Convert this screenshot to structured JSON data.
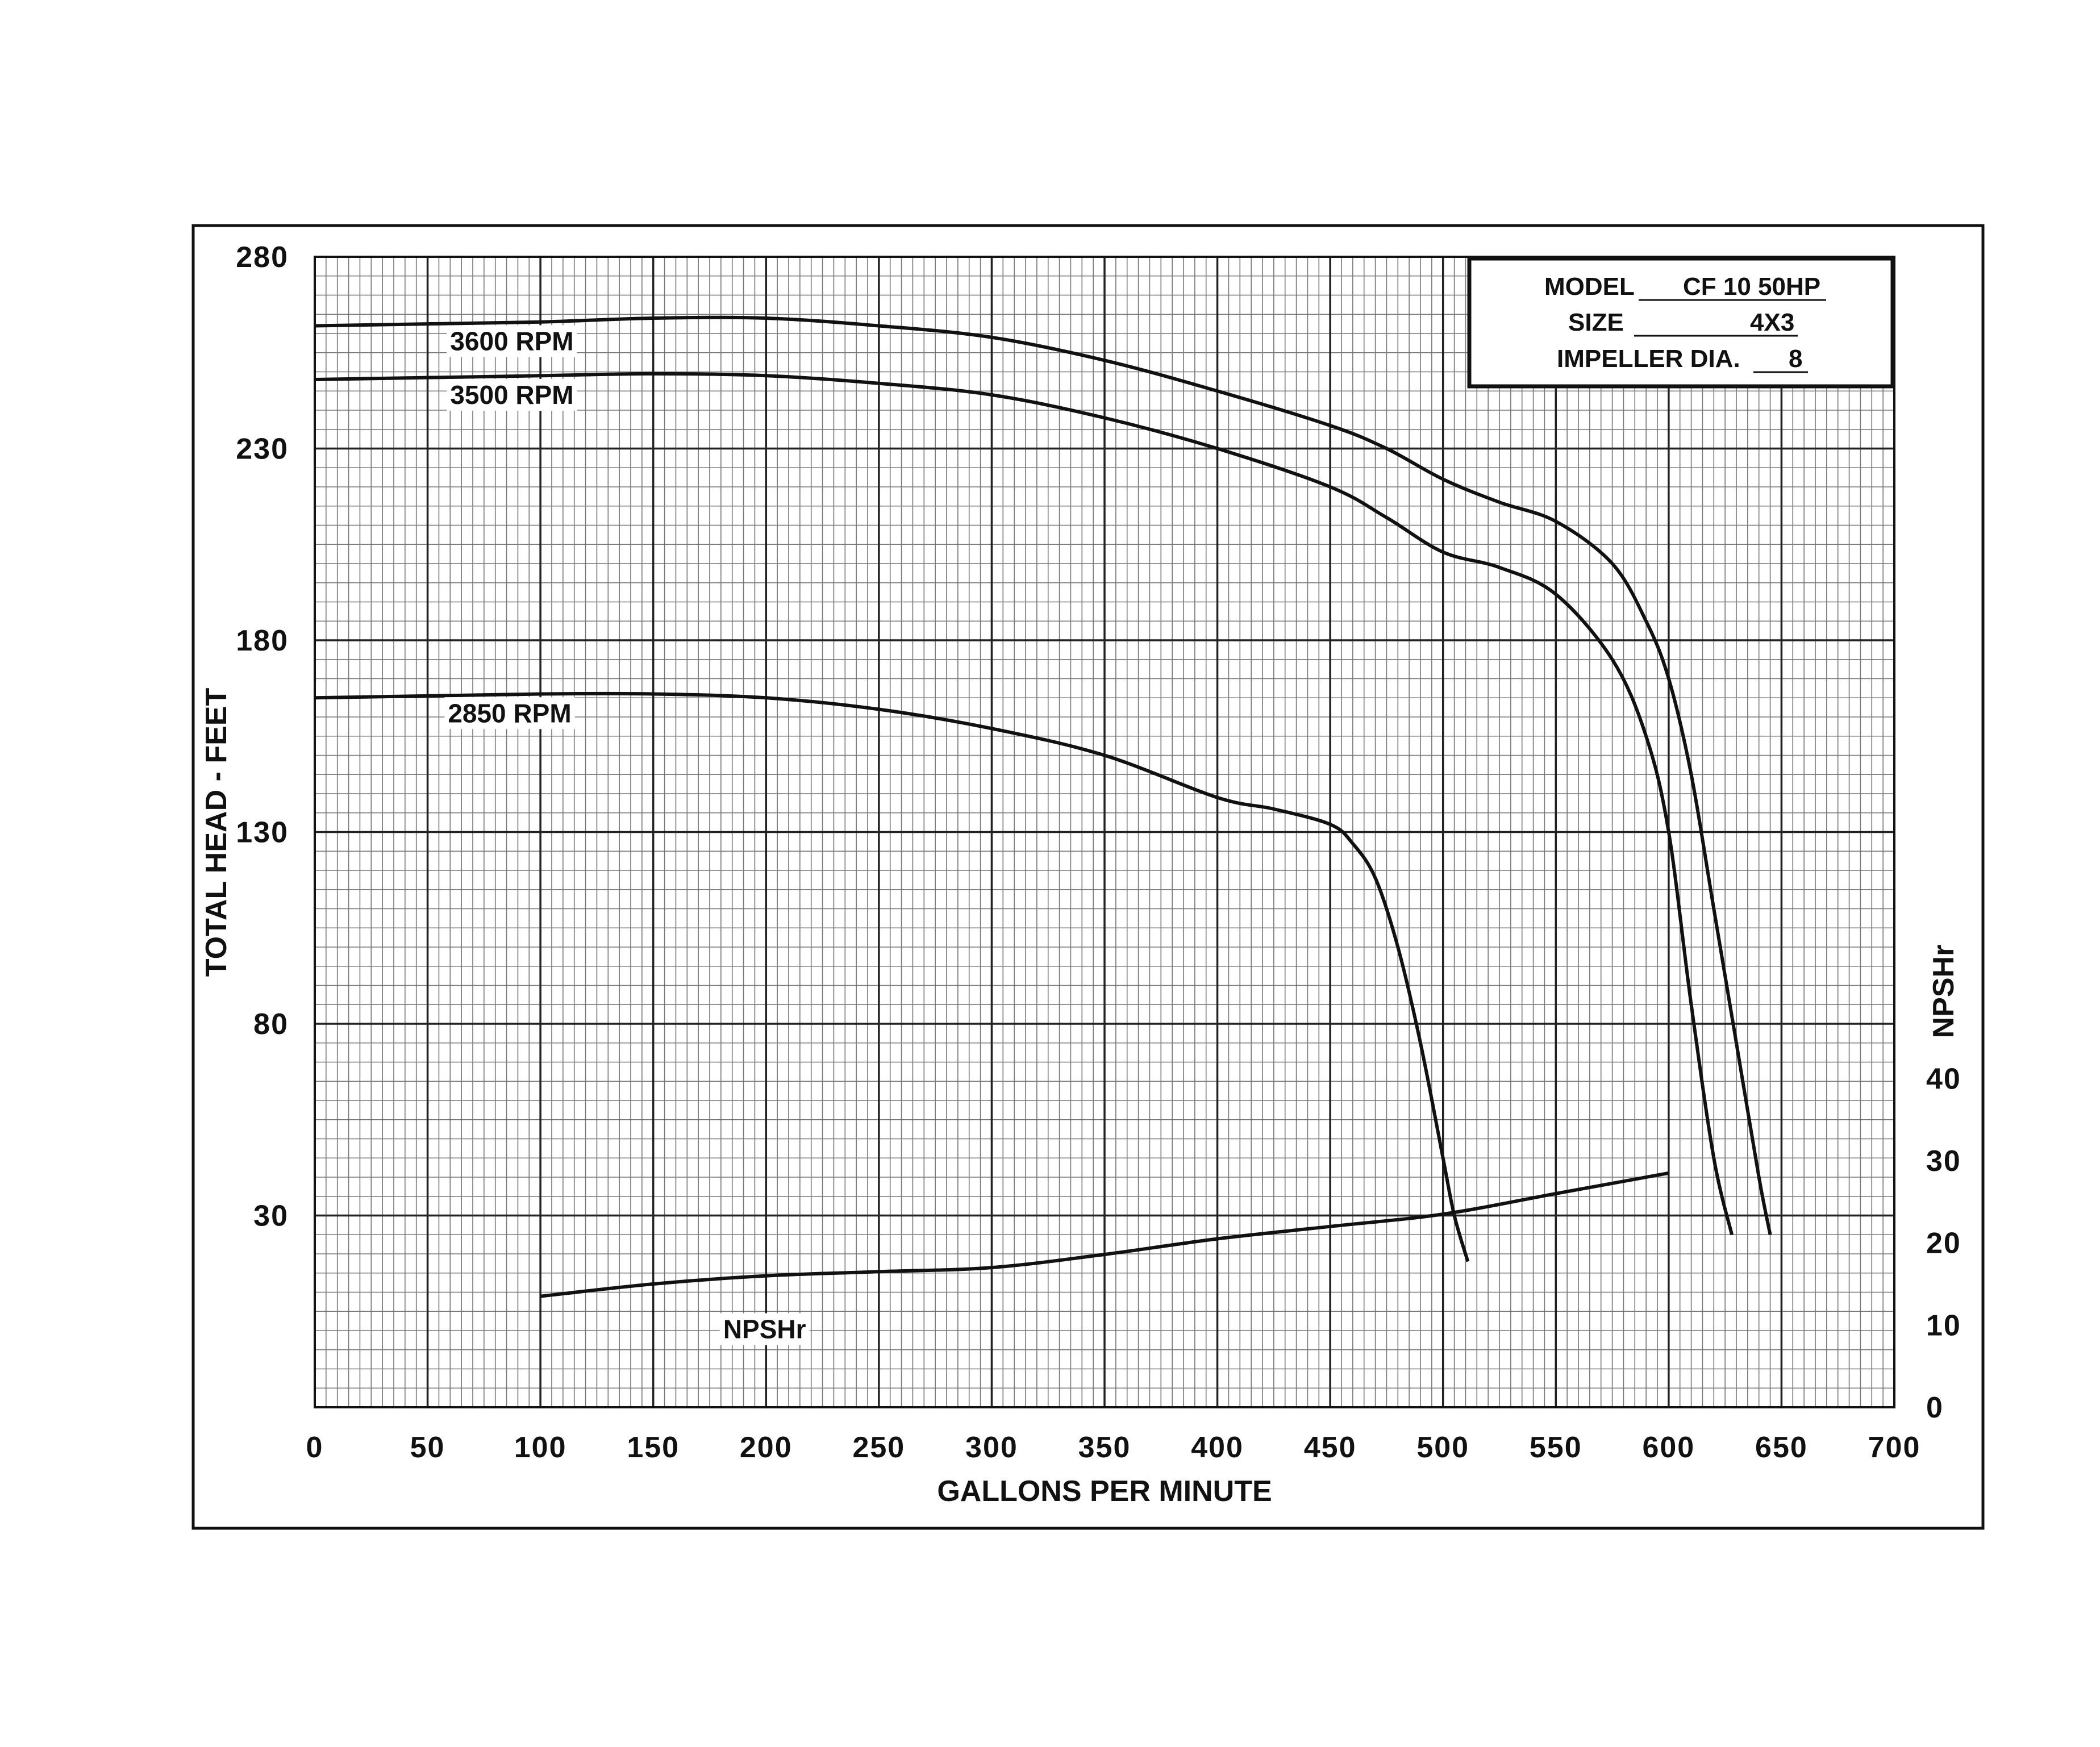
{
  "chart_data": {
    "type": "line",
    "xlabel": "GALLONS PER MINUTE",
    "ylabel": "TOTAL HEAD - FEET",
    "y2label": "NPSHr",
    "xlim": [
      0,
      700
    ],
    "ylim": [
      -20,
      280
    ],
    "y2lim": [
      0,
      140
    ],
    "grid": true,
    "x_ticks": [
      "0",
      "50",
      "100",
      "150",
      "200",
      "250",
      "300",
      "350",
      "400",
      "450",
      "500",
      "550",
      "600",
      "650",
      "700"
    ],
    "y_ticks": [
      "280",
      "230",
      "180",
      "130",
      "80",
      "30"
    ],
    "y_tick_values": [
      280,
      230,
      180,
      130,
      80,
      30
    ],
    "y2_ticks": [
      "40",
      "30",
      "20",
      "10",
      "0"
    ],
    "y2_tick_values": [
      40,
      30,
      20,
      10,
      0
    ],
    "info_box": {
      "model_label": "MODEL",
      "model_value": "CF 10 50HP",
      "size_label": "SIZE",
      "size_value": "4X3",
      "impeller_label": "IMPELLER DIA.",
      "impeller_value": "8"
    },
    "series": [
      {
        "name": "3600 RPM",
        "axis": "y",
        "x": [
          0,
          50,
          100,
          150,
          200,
          250,
          300,
          350,
          400,
          450,
          475,
          500,
          525,
          550,
          575,
          590,
          600,
          610,
          620,
          630,
          640,
          645
        ],
        "y": [
          262,
          262.5,
          263,
          264,
          264,
          262,
          259,
          253,
          245,
          236,
          230,
          222,
          216,
          211,
          200,
          185,
          170,
          145,
          110,
          75,
          40,
          25
        ]
      },
      {
        "name": "3500 RPM",
        "axis": "y",
        "x": [
          0,
          50,
          100,
          150,
          200,
          250,
          300,
          350,
          400,
          450,
          475,
          500,
          525,
          550,
          575,
          590,
          600,
          610,
          620,
          628
        ],
        "y": [
          248,
          248.5,
          249,
          249.5,
          249,
          247,
          244,
          238,
          230,
          220,
          212,
          203,
          199,
          192,
          175,
          155,
          130,
          85,
          45,
          25
        ]
      },
      {
        "name": "2850 RPM",
        "axis": "y",
        "x": [
          0,
          50,
          100,
          150,
          200,
          250,
          300,
          350,
          400,
          425,
          450,
          460,
          470,
          480,
          490,
          500,
          505,
          511
        ],
        "y": [
          165,
          165.5,
          166,
          166,
          165,
          162,
          157,
          150,
          139,
          136,
          132,
          127,
          118,
          100,
          75,
          45,
          30,
          18
        ]
      },
      {
        "name": "NPSHr",
        "axis": "y2",
        "x": [
          100,
          150,
          200,
          250,
          300,
          350,
          400,
          450,
          500,
          550,
          600
        ],
        "y": [
          13.5,
          15,
          16,
          16.5,
          17,
          18.6,
          20.5,
          22,
          23.5,
          26,
          28.5
        ]
      }
    ],
    "series_labels": [
      {
        "text": "3600 RPM",
        "x": 60,
        "y": 258
      },
      {
        "text": "3500 RPM",
        "x": 60,
        "y": 244
      },
      {
        "text": "2850 RPM",
        "x": 59,
        "y": 161
      },
      {
        "text": "NPSHr",
        "x": 181,
        "y2": 9.5
      }
    ]
  }
}
